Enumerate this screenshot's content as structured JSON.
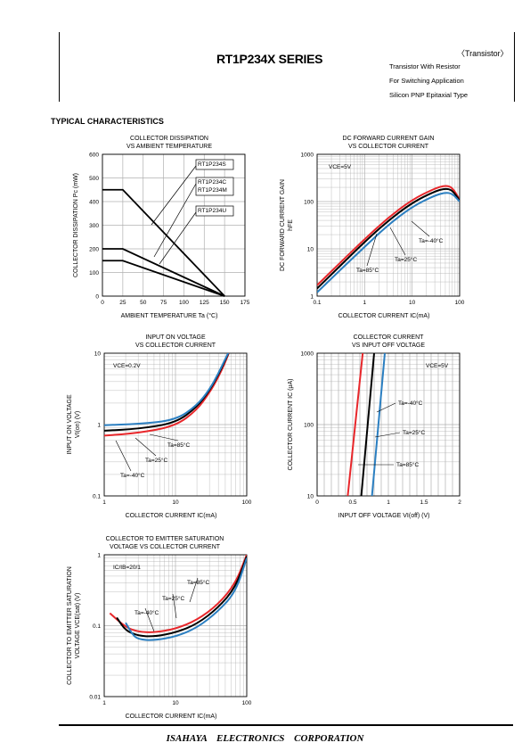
{
  "header": {
    "title": "RT1P234X SERIES",
    "category": "〈Transistor〉",
    "subtitle_lines": [
      "Transistor With Resistor",
      "For Switching Application",
      "Silicon PNP Epitaxial Type"
    ]
  },
  "section_title": "TYPICAL CHARACTERISTICS",
  "footer": "ISAHAYA ELECTRONICS CORPORATION",
  "colors": {
    "t85": "#e8272b",
    "t25": "#000000",
    "tm40": "#2b7fc1",
    "grid": "#b0b0b0"
  },
  "chart_data": [
    {
      "id": "pc_vs_ta",
      "type": "line",
      "title": [
        "COLLECTOR DISSIPATION",
        "VS AMBIENT TEMPERATURE"
      ],
      "xlabel": "AMBIENT TEMPERATURE Ta (°C)",
      "ylabel": "COLLECTOR DISSIPATION Pc (mW)",
      "xlim": [
        0,
        175
      ],
      "ylim": [
        0,
        600
      ],
      "xticks": [
        "0",
        "25",
        "50",
        "75",
        "100",
        "125",
        "150",
        "175"
      ],
      "yticks": [
        "0",
        "100",
        "200",
        "300",
        "400",
        "500",
        "600"
      ],
      "series": [
        {
          "name": "RT1P234S",
          "x": [
            0,
            25,
            150
          ],
          "y": [
            450,
            450,
            0
          ]
        },
        {
          "name": "RT1P234C RT1P234M",
          "x": [
            0,
            25,
            150
          ],
          "y": [
            200,
            200,
            0
          ]
        },
        {
          "name": "RT1P234U",
          "x": [
            0,
            25,
            150
          ],
          "y": [
            150,
            150,
            0
          ]
        }
      ],
      "labels": [
        "RT1P234S",
        "RT1P234C",
        "RT1P234M",
        "RT1P234U"
      ]
    },
    {
      "id": "hfe_vs_ic",
      "type": "line",
      "title": [
        "DC FORWARD CURRENT GAIN",
        "VS COLLECTOR CURRENT"
      ],
      "xlabel": "COLLECTOR CURRENT  IC(mA)",
      "ylabel": [
        "DC FORWARD CURRENT GAIN",
        "hFE"
      ],
      "xscale": "log",
      "yscale": "log",
      "xlim": [
        0.1,
        100
      ],
      "ylim": [
        1,
        1000
      ],
      "xticks": [
        "0.1",
        "1",
        "10",
        "100"
      ],
      "yticks": [
        "1",
        "10",
        "100",
        "1000"
      ],
      "condition": "VCE=5V",
      "series": [
        {
          "name": "Ta=85°C",
          "x": [
            0.1,
            0.3,
            1,
            3,
            10,
            30,
            50,
            70,
            100
          ],
          "y": [
            1.7,
            5,
            16,
            44,
            110,
            190,
            220,
            200,
            110
          ]
        },
        {
          "name": "Ta=25°C",
          "x": [
            0.1,
            0.3,
            1,
            3,
            10,
            30,
            50,
            70,
            100
          ],
          "y": [
            1.45,
            4.3,
            14,
            38,
            95,
            165,
            190,
            175,
            105
          ]
        },
        {
          "name": "Ta=-40°C",
          "x": [
            0.1,
            0.3,
            1,
            3,
            10,
            30,
            50,
            70,
            100
          ],
          "y": [
            1.2,
            3.5,
            11,
            31,
            78,
            135,
            155,
            148,
            100
          ]
        }
      ]
    },
    {
      "id": "vion_vs_ic",
      "type": "line",
      "title": [
        "INPUT ON VOLTAGE",
        "VS COLLECTOR CURRENT"
      ],
      "xlabel": "COLLECTOR CURRENT  IC(mA)",
      "ylabel": [
        "INPUT ON VOLTAGE",
        "VI(on) (V)"
      ],
      "xscale": "log",
      "yscale": "log",
      "xlim": [
        1,
        100
      ],
      "ylim": [
        0.1,
        10
      ],
      "xticks": [
        "1",
        "10",
        "100"
      ],
      "yticks": [
        "0.1",
        "1",
        "10"
      ],
      "condition": "VCE=0.2V",
      "series": [
        {
          "name": "Ta=85°C",
          "x": [
            1,
            3,
            10,
            20,
            30,
            40,
            50,
            60
          ],
          "y": [
            0.7,
            0.76,
            0.95,
            1.6,
            2.8,
            4.6,
            7.5,
            12
          ]
        },
        {
          "name": "Ta=25°C",
          "x": [
            1,
            3,
            10,
            20,
            30,
            40,
            50,
            60
          ],
          "y": [
            0.82,
            0.87,
            1.05,
            1.75,
            3.0,
            5.0,
            8.0,
            12
          ]
        },
        {
          "name": "Ta=-40°C",
          "x": [
            1,
            3,
            10,
            20,
            30,
            40,
            50,
            60
          ],
          "y": [
            0.98,
            1.02,
            1.15,
            1.85,
            3.1,
            5.2,
            8.3,
            12
          ]
        }
      ]
    },
    {
      "id": "ic_vs_vioff",
      "type": "line",
      "title": [
        "COLLECTOR CURRENT",
        "VS INPUT OFF VOLTAGE"
      ],
      "xlabel": "INPUT OFF VOLTAGE VI(off) (V)",
      "ylabel": "COLLECTOR CURRENT IC (μA)",
      "yscale": "log",
      "xlim": [
        0,
        2
      ],
      "ylim": [
        10,
        1000
      ],
      "xticks": [
        "0",
        "0.5",
        "1",
        "1.5",
        "2"
      ],
      "yticks": [
        "10",
        "100",
        "1000"
      ],
      "condition": "VCE=5V",
      "series": [
        {
          "name": "Ta=85°C",
          "x": [
            0.43,
            0.64
          ],
          "y": [
            10,
            1000
          ]
        },
        {
          "name": "Ta=25°C",
          "x": [
            0.62,
            0.8
          ],
          "y": [
            10,
            1000
          ]
        },
        {
          "name": "Ta=-40°C",
          "x": [
            0.77,
            0.95
          ],
          "y": [
            10,
            1000
          ]
        }
      ]
    },
    {
      "id": "vcesat_vs_ic",
      "type": "line",
      "title": [
        "COLLECTOR TO EMITTER SATURATION",
        "VOLTAGE VS COLLECTOR CURRENT"
      ],
      "xlabel": "COLLECTOR CURRENT  IC(mA)",
      "ylabel": [
        "COLLECTOR TO EMITTER SATURATION",
        "VOLTAGE VCE(sat) (V)"
      ],
      "xscale": "log",
      "yscale": "log",
      "xlim": [
        1,
        100
      ],
      "ylim": [
        0.01,
        1
      ],
      "xticks": [
        "1",
        "10",
        "100"
      ],
      "yticks": [
        "0.01",
        "0.1",
        "1"
      ],
      "condition": "IC/IB=20/1",
      "series": [
        {
          "name": "Ta=85°C",
          "x": [
            1.2,
            2,
            3,
            5,
            10,
            20,
            40,
            70,
            100
          ],
          "y": [
            0.15,
            0.095,
            0.082,
            0.08,
            0.09,
            0.12,
            0.2,
            0.4,
            1.0
          ]
        },
        {
          "name": "Ta=25°C",
          "x": [
            1.5,
            2,
            3,
            5,
            10,
            20,
            40,
            70,
            100
          ],
          "y": [
            0.13,
            0.085,
            0.072,
            0.07,
            0.08,
            0.105,
            0.18,
            0.35,
            0.95
          ]
        },
        {
          "name": "Ta=-40°C",
          "x": [
            2,
            2.5,
            3,
            5,
            10,
            20,
            40,
            70,
            100
          ],
          "y": [
            0.11,
            0.075,
            0.064,
            0.062,
            0.07,
            0.093,
            0.16,
            0.3,
            0.9
          ]
        }
      ]
    }
  ]
}
